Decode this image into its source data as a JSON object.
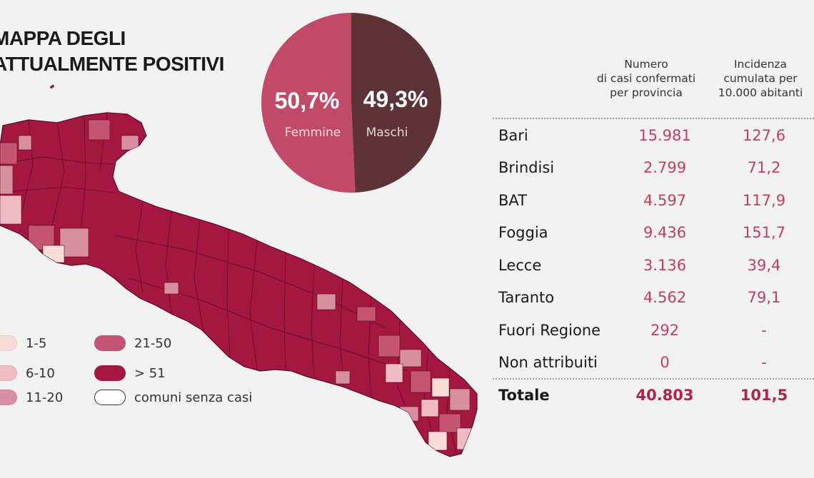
{
  "title_lines": [
    "MAPPA DEGLI",
    "ATTUALMENTE POSITIVI"
  ],
  "colors": {
    "c1_5": "#f6dcd6",
    "c6_10": "#eebcc2",
    "c11_20": "#d98fa2",
    "c21_50": "#c45474",
    "c51": "#a31740",
    "none": "#ffffff",
    "pie_female": "#c04a67",
    "pie_male": "#5e3338",
    "accent_text": "#c0405f"
  },
  "legend": [
    {
      "label": "1-5",
      "color_key": "c1_5"
    },
    {
      "label": "6-10",
      "color_key": "c6_10"
    },
    {
      "label": "11-20",
      "color_key": "c11_20"
    },
    {
      "label": "21-50",
      "color_key": "c21_50"
    },
    {
      "label": "> 51",
      "color_key": "c51"
    },
    {
      "label": "comuni senza casi",
      "color_key": "none"
    }
  ],
  "table": {
    "header_cases": "Numero\ndi casi confermati\nper provincia",
    "header_incidence": "Incidenza\ncumulata per\n10.000 abitanti",
    "rows": [
      {
        "name": "Bari",
        "cases": "15.981",
        "incidence": "127,6"
      },
      {
        "name": "Brindisi",
        "cases": "2.799",
        "incidence": "71,2"
      },
      {
        "name": "BAT",
        "cases": "4.597",
        "incidence": "117,9"
      },
      {
        "name": "Foggia",
        "cases": "9.436",
        "incidence": "151,7"
      },
      {
        "name": "Lecce",
        "cases": "3.136",
        "incidence": "39,4"
      },
      {
        "name": "Taranto",
        "cases": "4.562",
        "incidence": "79,1"
      },
      {
        "name": "Fuori Regione",
        "cases": "292",
        "incidence": "-"
      },
      {
        "name": "Non attribuiti",
        "cases": "0",
        "incidence": "-"
      }
    ],
    "total": {
      "name": "Totale",
      "cases": "40.803",
      "incidence": "101,5"
    }
  },
  "chart_data": [
    {
      "type": "pie",
      "categories": [
        "Femmine",
        "Maschi"
      ],
      "values": [
        50.7,
        49.3
      ],
      "value_labels": [
        "50,7%",
        "49,3%"
      ]
    },
    {
      "type": "table",
      "columns": [
        "",
        "Numero di casi confermati per provincia",
        "Incidenza cumulata per 10.000 abitanti"
      ],
      "rows": [
        [
          "Bari",
          15981,
          127.6
        ],
        [
          "Brindisi",
          2799,
          71.2
        ],
        [
          "BAT",
          4597,
          117.9
        ],
        [
          "Foggia",
          9436,
          151.7
        ],
        [
          "Lecce",
          3136,
          39.4
        ],
        [
          "Taranto",
          4562,
          79.1
        ],
        [
          "Fuori Regione",
          292,
          null
        ],
        [
          "Non attribuiti",
          0,
          null
        ],
        [
          "Totale",
          40803,
          101.5
        ]
      ]
    }
  ]
}
